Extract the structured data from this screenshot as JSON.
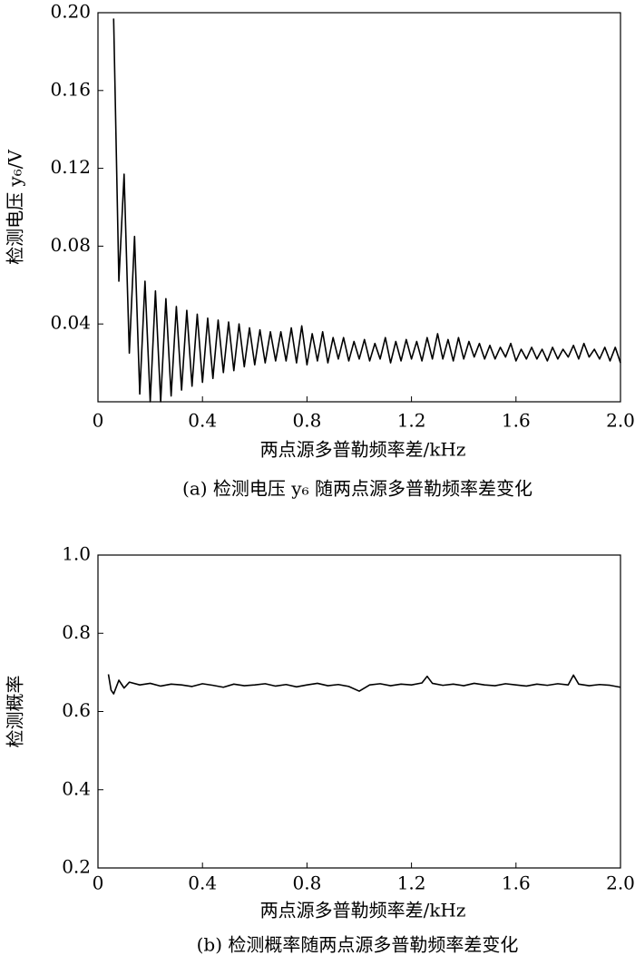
{
  "chart_data": [
    {
      "type": "line",
      "caption": "(a) 检测电压 y₆ 随两点源多普勒频率差变化",
      "xlabel": "两点源多普勒频率差/kHz",
      "ylabel": "检测电压 y₆/V",
      "color": "#000000",
      "xlim": [
        0,
        2
      ],
      "xticks": [
        0,
        0.4,
        0.8,
        1.2,
        1.6,
        {
          "value": 2,
          "label": "2.0"
        }
      ],
      "ylim": [
        0,
        0.2
      ],
      "yticks": [
        0.04,
        0.08,
        0.12,
        0.16,
        {
          "value": 0.2,
          "label": "0.20"
        }
      ],
      "x": [
        0.06,
        0.08,
        0.1,
        0.12,
        0.14,
        0.16,
        0.18,
        0.2,
        0.22,
        0.24,
        0.26,
        0.28,
        0.3,
        0.32,
        0.34,
        0.36,
        0.38,
        0.4,
        0.42,
        0.44,
        0.46,
        0.48,
        0.5,
        0.52,
        0.54,
        0.56,
        0.58,
        0.6,
        0.62,
        0.64,
        0.66,
        0.68,
        0.7,
        0.72,
        0.74,
        0.76,
        0.78,
        0.8,
        0.82,
        0.84,
        0.86,
        0.88,
        0.9,
        0.92,
        0.94,
        0.96,
        0.98,
        1,
        1.02,
        1.04,
        1.06,
        1.08,
        1.1,
        1.12,
        1.14,
        1.16,
        1.18,
        1.2,
        1.22,
        1.24,
        1.26,
        1.28,
        1.3,
        1.32,
        1.34,
        1.36,
        1.38,
        1.4,
        1.42,
        1.44,
        1.46,
        1.48,
        1.5,
        1.52,
        1.54,
        1.56,
        1.58,
        1.6,
        1.62,
        1.64,
        1.66,
        1.68,
        1.7,
        1.72,
        1.74,
        1.76,
        1.78,
        1.8,
        1.82,
        1.84,
        1.86,
        1.88,
        1.9,
        1.92,
        1.94,
        1.96,
        1.98,
        2
      ],
      "values": [
        0.197,
        0.062,
        0.117,
        0.025,
        0.085,
        0.004,
        0.062,
        0,
        0.057,
        0,
        0.053,
        0.003,
        0.049,
        0.006,
        0.047,
        0.008,
        0.045,
        0.01,
        0.043,
        0.012,
        0.042,
        0.015,
        0.041,
        0.016,
        0.04,
        0.018,
        0.038,
        0.019,
        0.037,
        0.02,
        0.036,
        0.021,
        0.036,
        0.021,
        0.038,
        0.02,
        0.039,
        0.019,
        0.035,
        0.021,
        0.036,
        0.02,
        0.033,
        0.022,
        0.033,
        0.021,
        0.031,
        0.022,
        0.032,
        0.021,
        0.03,
        0.022,
        0.033,
        0.02,
        0.031,
        0.021,
        0.032,
        0.022,
        0.031,
        0.021,
        0.033,
        0.022,
        0.035,
        0.022,
        0.032,
        0.021,
        0.033,
        0.022,
        0.031,
        0.023,
        0.03,
        0.022,
        0.029,
        0.022,
        0.028,
        0.023,
        0.03,
        0.021,
        0.027,
        0.022,
        0.028,
        0.022,
        0.027,
        0.021,
        0.028,
        0.022,
        0.027,
        0.023,
        0.029,
        0.022,
        0.03,
        0.023,
        0.027,
        0.022,
        0.028,
        0.021,
        0.028,
        0.02
      ]
    },
    {
      "type": "line",
      "caption": "(b) 检测概率随两点源多普勒频率差变化",
      "xlabel": "两点源多普勒频率差/kHz",
      "ylabel": "检测概率",
      "color": "#000000",
      "xlim": [
        0,
        2
      ],
      "xticks": [
        0,
        0.4,
        0.8,
        1.2,
        1.6,
        {
          "value": 2,
          "label": "2.0"
        }
      ],
      "ylim": [
        0.2,
        1
      ],
      "yticks": [
        0.2,
        0.4,
        0.6,
        0.8,
        {
          "value": 1,
          "label": "1.0"
        }
      ],
      "x": [
        0.04,
        0.05,
        0.06,
        0.08,
        0.1,
        0.12,
        0.16,
        0.2,
        0.24,
        0.28,
        0.32,
        0.36,
        0.4,
        0.44,
        0.48,
        0.52,
        0.56,
        0.6,
        0.64,
        0.68,
        0.72,
        0.76,
        0.8,
        0.84,
        0.88,
        0.92,
        0.96,
        1,
        1.04,
        1.08,
        1.12,
        1.16,
        1.2,
        1.24,
        1.26,
        1.28,
        1.32,
        1.36,
        1.4,
        1.44,
        1.48,
        1.52,
        1.56,
        1.6,
        1.64,
        1.68,
        1.72,
        1.76,
        1.8,
        1.82,
        1.84,
        1.88,
        1.92,
        1.96,
        2
      ],
      "values": [
        0.695,
        0.655,
        0.645,
        0.68,
        0.66,
        0.675,
        0.668,
        0.672,
        0.665,
        0.67,
        0.668,
        0.664,
        0.671,
        0.667,
        0.662,
        0.67,
        0.666,
        0.668,
        0.671,
        0.665,
        0.669,
        0.663,
        0.668,
        0.672,
        0.666,
        0.669,
        0.664,
        0.652,
        0.668,
        0.671,
        0.666,
        0.67,
        0.668,
        0.673,
        0.69,
        0.672,
        0.667,
        0.67,
        0.666,
        0.672,
        0.668,
        0.666,
        0.671,
        0.668,
        0.665,
        0.67,
        0.667,
        0.671,
        0.668,
        0.693,
        0.67,
        0.666,
        0.669,
        0.667,
        0.662
      ]
    }
  ]
}
